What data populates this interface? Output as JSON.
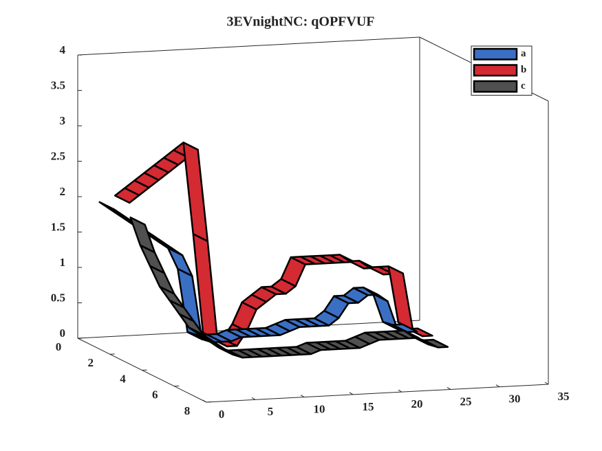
{
  "chart_data": {
    "type": "ribbon3d",
    "title": "3EVnightNC: qOPFVUF",
    "x": [
      1,
      2,
      3,
      4,
      5,
      6,
      7,
      8,
      9,
      10,
      11,
      12,
      13,
      14,
      15,
      16,
      17,
      18,
      19,
      20,
      21,
      22,
      23,
      24,
      25,
      26,
      27,
      28,
      29,
      30,
      31,
      32
    ],
    "series": [
      {
        "name": "a",
        "color": "#3b6fc4",
        "values": [
          2.0,
          1.9,
          1.8,
          1.7,
          1.6,
          1.5,
          1.4,
          1.3,
          1.0,
          0.1,
          0.05,
          0.05,
          0.05,
          0.1,
          0.1,
          0.1,
          0.1,
          0.1,
          0.15,
          0.2,
          0.2,
          0.2,
          0.2,
          0.3,
          0.5,
          0.5,
          0.6,
          0.6,
          0.5,
          0.1,
          0.05,
          0.05
        ]
      },
      {
        "name": "b",
        "color": "#d42a32",
        "values": [
          2.2,
          2.3,
          2.4,
          2.5,
          2.6,
          2.7,
          2.8,
          2.9,
          1.6,
          0.2,
          0.1,
          0.1,
          0.3,
          0.6,
          0.7,
          0.8,
          0.8,
          0.9,
          1.2,
          1.2,
          1.2,
          1.2,
          1.2,
          1.2,
          1.1,
          1.1,
          1.0,
          1.0,
          1.0,
          0.2,
          0.1,
          0.1
        ]
      },
      {
        "name": "c",
        "color": "#505050",
        "values": [
          2.0,
          1.6,
          1.3,
          1.0,
          0.8,
          0.6,
          0.4,
          0.3,
          0.2,
          0.1,
          0.05,
          0.05,
          0.05,
          0.05,
          0.05,
          0.05,
          0.05,
          0.05,
          0.1,
          0.1,
          0.1,
          0.1,
          0.1,
          0.15,
          0.2,
          0.2,
          0.2,
          0.2,
          0.2,
          0.1,
          0.05,
          0.05
        ]
      }
    ],
    "xlim": [
      0,
      35
    ],
    "ylim": [
      0,
      8
    ],
    "zlim": [
      0,
      4
    ],
    "xticks": [
      0,
      5,
      10,
      15,
      20,
      25,
      30,
      35
    ],
    "yticks": [
      0,
      2,
      4,
      6,
      8
    ],
    "zticks": [
      0,
      0.5,
      1,
      1.5,
      2,
      2.5,
      3,
      3.5,
      4
    ],
    "legend": "northeast"
  }
}
